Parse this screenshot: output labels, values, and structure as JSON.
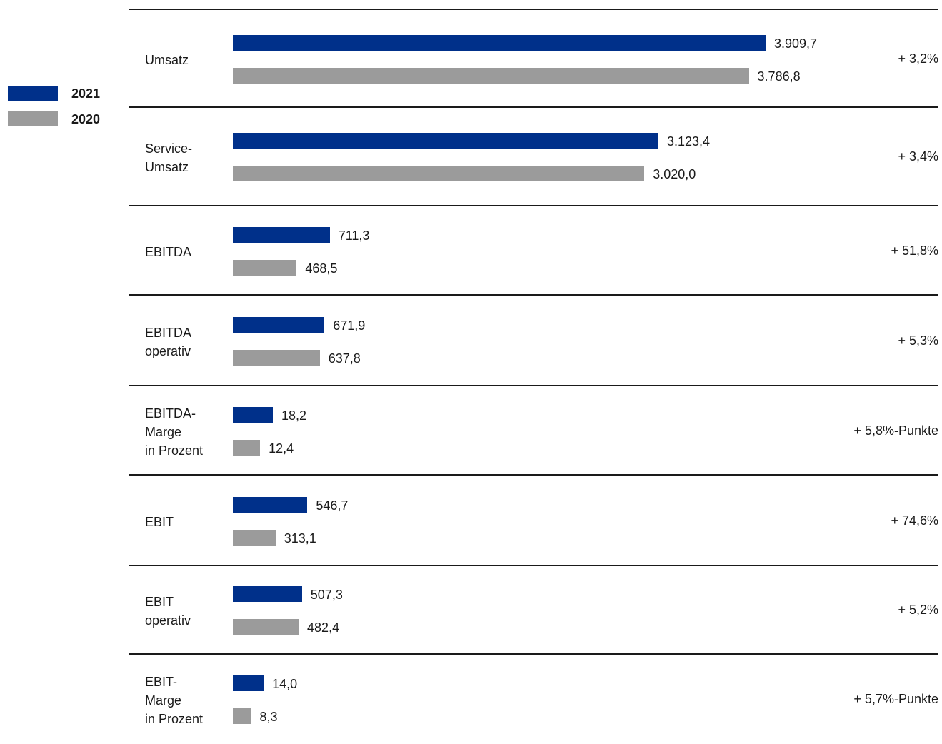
{
  "colors": {
    "series_2021": "#00308a",
    "series_2020": "#9b9b9b",
    "rule": "#1a1a1a"
  },
  "chart_data": {
    "type": "bar",
    "orientation": "horizontal",
    "legend": "left",
    "series": [
      {
        "name": "2021",
        "color": "#00308a"
      },
      {
        "name": "2020",
        "color": "#9b9b9b"
      }
    ],
    "rows": [
      {
        "label": [
          "Umsatz"
        ],
        "values": [
          3909.7,
          3786.8
        ],
        "labels": [
          "3.909,7",
          "3.786,8"
        ],
        "change": "+ 3,2%",
        "scale": "abs"
      },
      {
        "label": [
          "Service-",
          "Umsatz"
        ],
        "values": [
          3123.4,
          3020.0
        ],
        "labels": [
          "3.123,4",
          "3.020,0"
        ],
        "change": "+ 3,4%",
        "scale": "abs"
      },
      {
        "label": [
          "EBITDA"
        ],
        "values": [
          711.3,
          468.5
        ],
        "labels": [
          "711,3",
          "468,5"
        ],
        "change": "+ 51,8%",
        "scale": "abs"
      },
      {
        "label": [
          "EBITDA",
          "operativ"
        ],
        "values": [
          671.9,
          637.8
        ],
        "labels": [
          "671,9",
          "637,8"
        ],
        "change": "+ 5,3%",
        "scale": "abs"
      },
      {
        "label": [
          "EBITDA-",
          "Marge",
          "in Prozent"
        ],
        "values": [
          18.2,
          12.4
        ],
        "labels": [
          "18,2",
          "12,4"
        ],
        "change": "+ 5,8%-Punkte",
        "scale": "pct"
      },
      {
        "label": [
          "EBIT"
        ],
        "values": [
          546.7,
          313.1
        ],
        "labels": [
          "546,7",
          "313,1"
        ],
        "change": "+ 74,6%",
        "scale": "abs"
      },
      {
        "label": [
          "EBIT",
          "operativ"
        ],
        "values": [
          507.3,
          482.4
        ],
        "labels": [
          "507,3",
          "482,4"
        ],
        "change": "+ 5,2%",
        "scale": "abs"
      },
      {
        "label": [
          "EBIT-",
          "Marge",
          "in Prozent"
        ],
        "values": [
          14.0,
          8.3
        ],
        "labels": [
          "14,0",
          "8,3"
        ],
        "change": "+ 5,7%-Punkte",
        "scale": "pct"
      }
    ]
  }
}
